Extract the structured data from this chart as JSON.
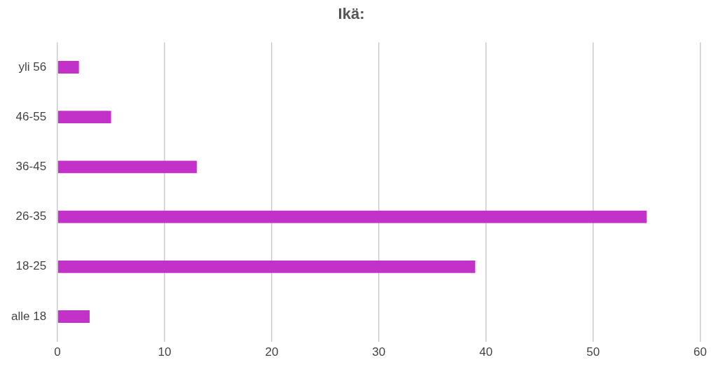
{
  "chart_data": {
    "type": "bar",
    "orientation": "horizontal",
    "title": "Ikä:",
    "categories": [
      "yli 56",
      "46-55",
      "36-45",
      "26-35",
      "18-25",
      "alle 18"
    ],
    "values": [
      2,
      5,
      13,
      55,
      39,
      3
    ],
    "color": "#c232c8",
    "xlim": [
      0,
      60
    ],
    "xticks": [
      0,
      10,
      20,
      30,
      40,
      50,
      60
    ],
    "grid": "x",
    "legend": false
  }
}
